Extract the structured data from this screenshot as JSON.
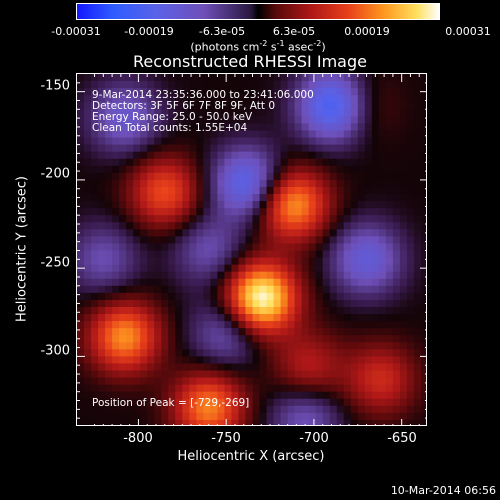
{
  "chart_data": {
    "type": "heatmap",
    "title": "Reconstructed RHESSI Image",
    "xlabel": "Heliocentric X (arcsec)",
    "ylabel": "Heliocentric Y (arcsec)",
    "xlim": [
      -835,
      -635
    ],
    "ylim": [
      -340,
      -140
    ],
    "x_ticks": [
      "-800",
      "-750",
      "-700",
      "-650"
    ],
    "y_ticks": [
      "-150",
      "-200",
      "-250",
      "-300"
    ],
    "colorbar": {
      "ticks": [
        "-0.00031",
        "-0.00019",
        "-6.3e-05",
        "6.3e-05",
        "0.00019",
        "0.00031"
      ],
      "range": [
        -0.00031,
        0.00031
      ],
      "unit_text": "(photons cm",
      "unit_sup1": "-2",
      "unit_mid": " s",
      "unit_sup2": "-1",
      "unit_mid2": " asec",
      "unit_sup3": "-2",
      "unit_end": ")"
    },
    "annotations": [
      "9-Mar-2014 23:35:36.000 to 23:41:06.000",
      "Detectors: 3F 5F 6F 7F 8F 9F, Att 0",
      "Energy Range: 25.0 - 50.0 keV",
      "Clean     Total counts: 1.55E+04"
    ],
    "peak_label": "Position of Peak = [-729,-269]",
    "peak": [
      -729,
      -269
    ],
    "sources": [
      {
        "x": -730,
        "y": -267,
        "value": 0.00031
      },
      {
        "x": -712,
        "y": -214,
        "value": 0.00022
      },
      {
        "x": -808,
        "y": -289,
        "value": 0.00021
      },
      {
        "x": -760,
        "y": -329,
        "value": 0.0002
      },
      {
        "x": -785,
        "y": -207,
        "value": 0.00016
      },
      {
        "x": -662,
        "y": -313,
        "value": 0.00012
      },
      {
        "x": -703,
        "y": -306,
        "value": 0.0001
      },
      {
        "x": -675,
        "y": -158,
        "value": 8e-05
      },
      {
        "x": -808,
        "y": -165,
        "value": -0.00012
      },
      {
        "x": -738,
        "y": -202,
        "value": -0.00018
      },
      {
        "x": -688,
        "y": -158,
        "value": -0.00024
      },
      {
        "x": -670,
        "y": -245,
        "value": -0.00014
      },
      {
        "x": -750,
        "y": -287,
        "value": -0.0001
      },
      {
        "x": -760,
        "y": -240,
        "value": -9e-05
      },
      {
        "x": -820,
        "y": -245,
        "value": -9e-05
      },
      {
        "x": -705,
        "y": -335,
        "value": -0.0001
      }
    ]
  },
  "footer": {
    "timestamp": "10-Mar-2014 06:56"
  }
}
